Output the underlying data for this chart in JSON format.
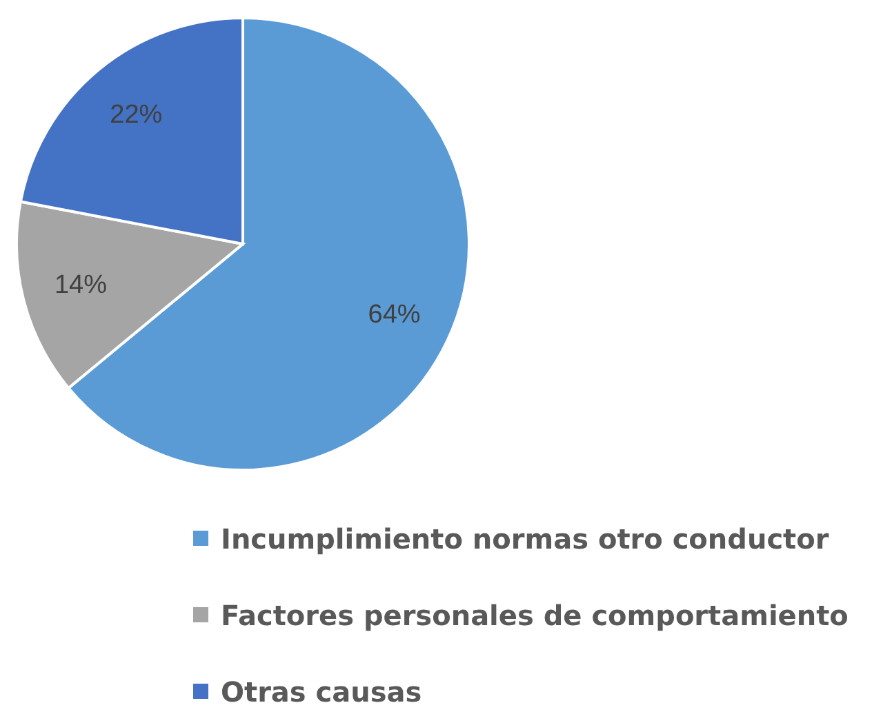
{
  "chart_data": {
    "type": "pie",
    "categories": [
      "Incumplimiento normas otro conductor",
      "Factores personales de comportamiento",
      "Otras causas"
    ],
    "values": [
      64,
      14,
      22
    ],
    "colors": [
      "#5b9bd5",
      "#a5a5a5",
      "#4472c4"
    ],
    "value_labels": [
      "64%",
      "14%",
      "22%"
    ],
    "legend": "bottom"
  }
}
